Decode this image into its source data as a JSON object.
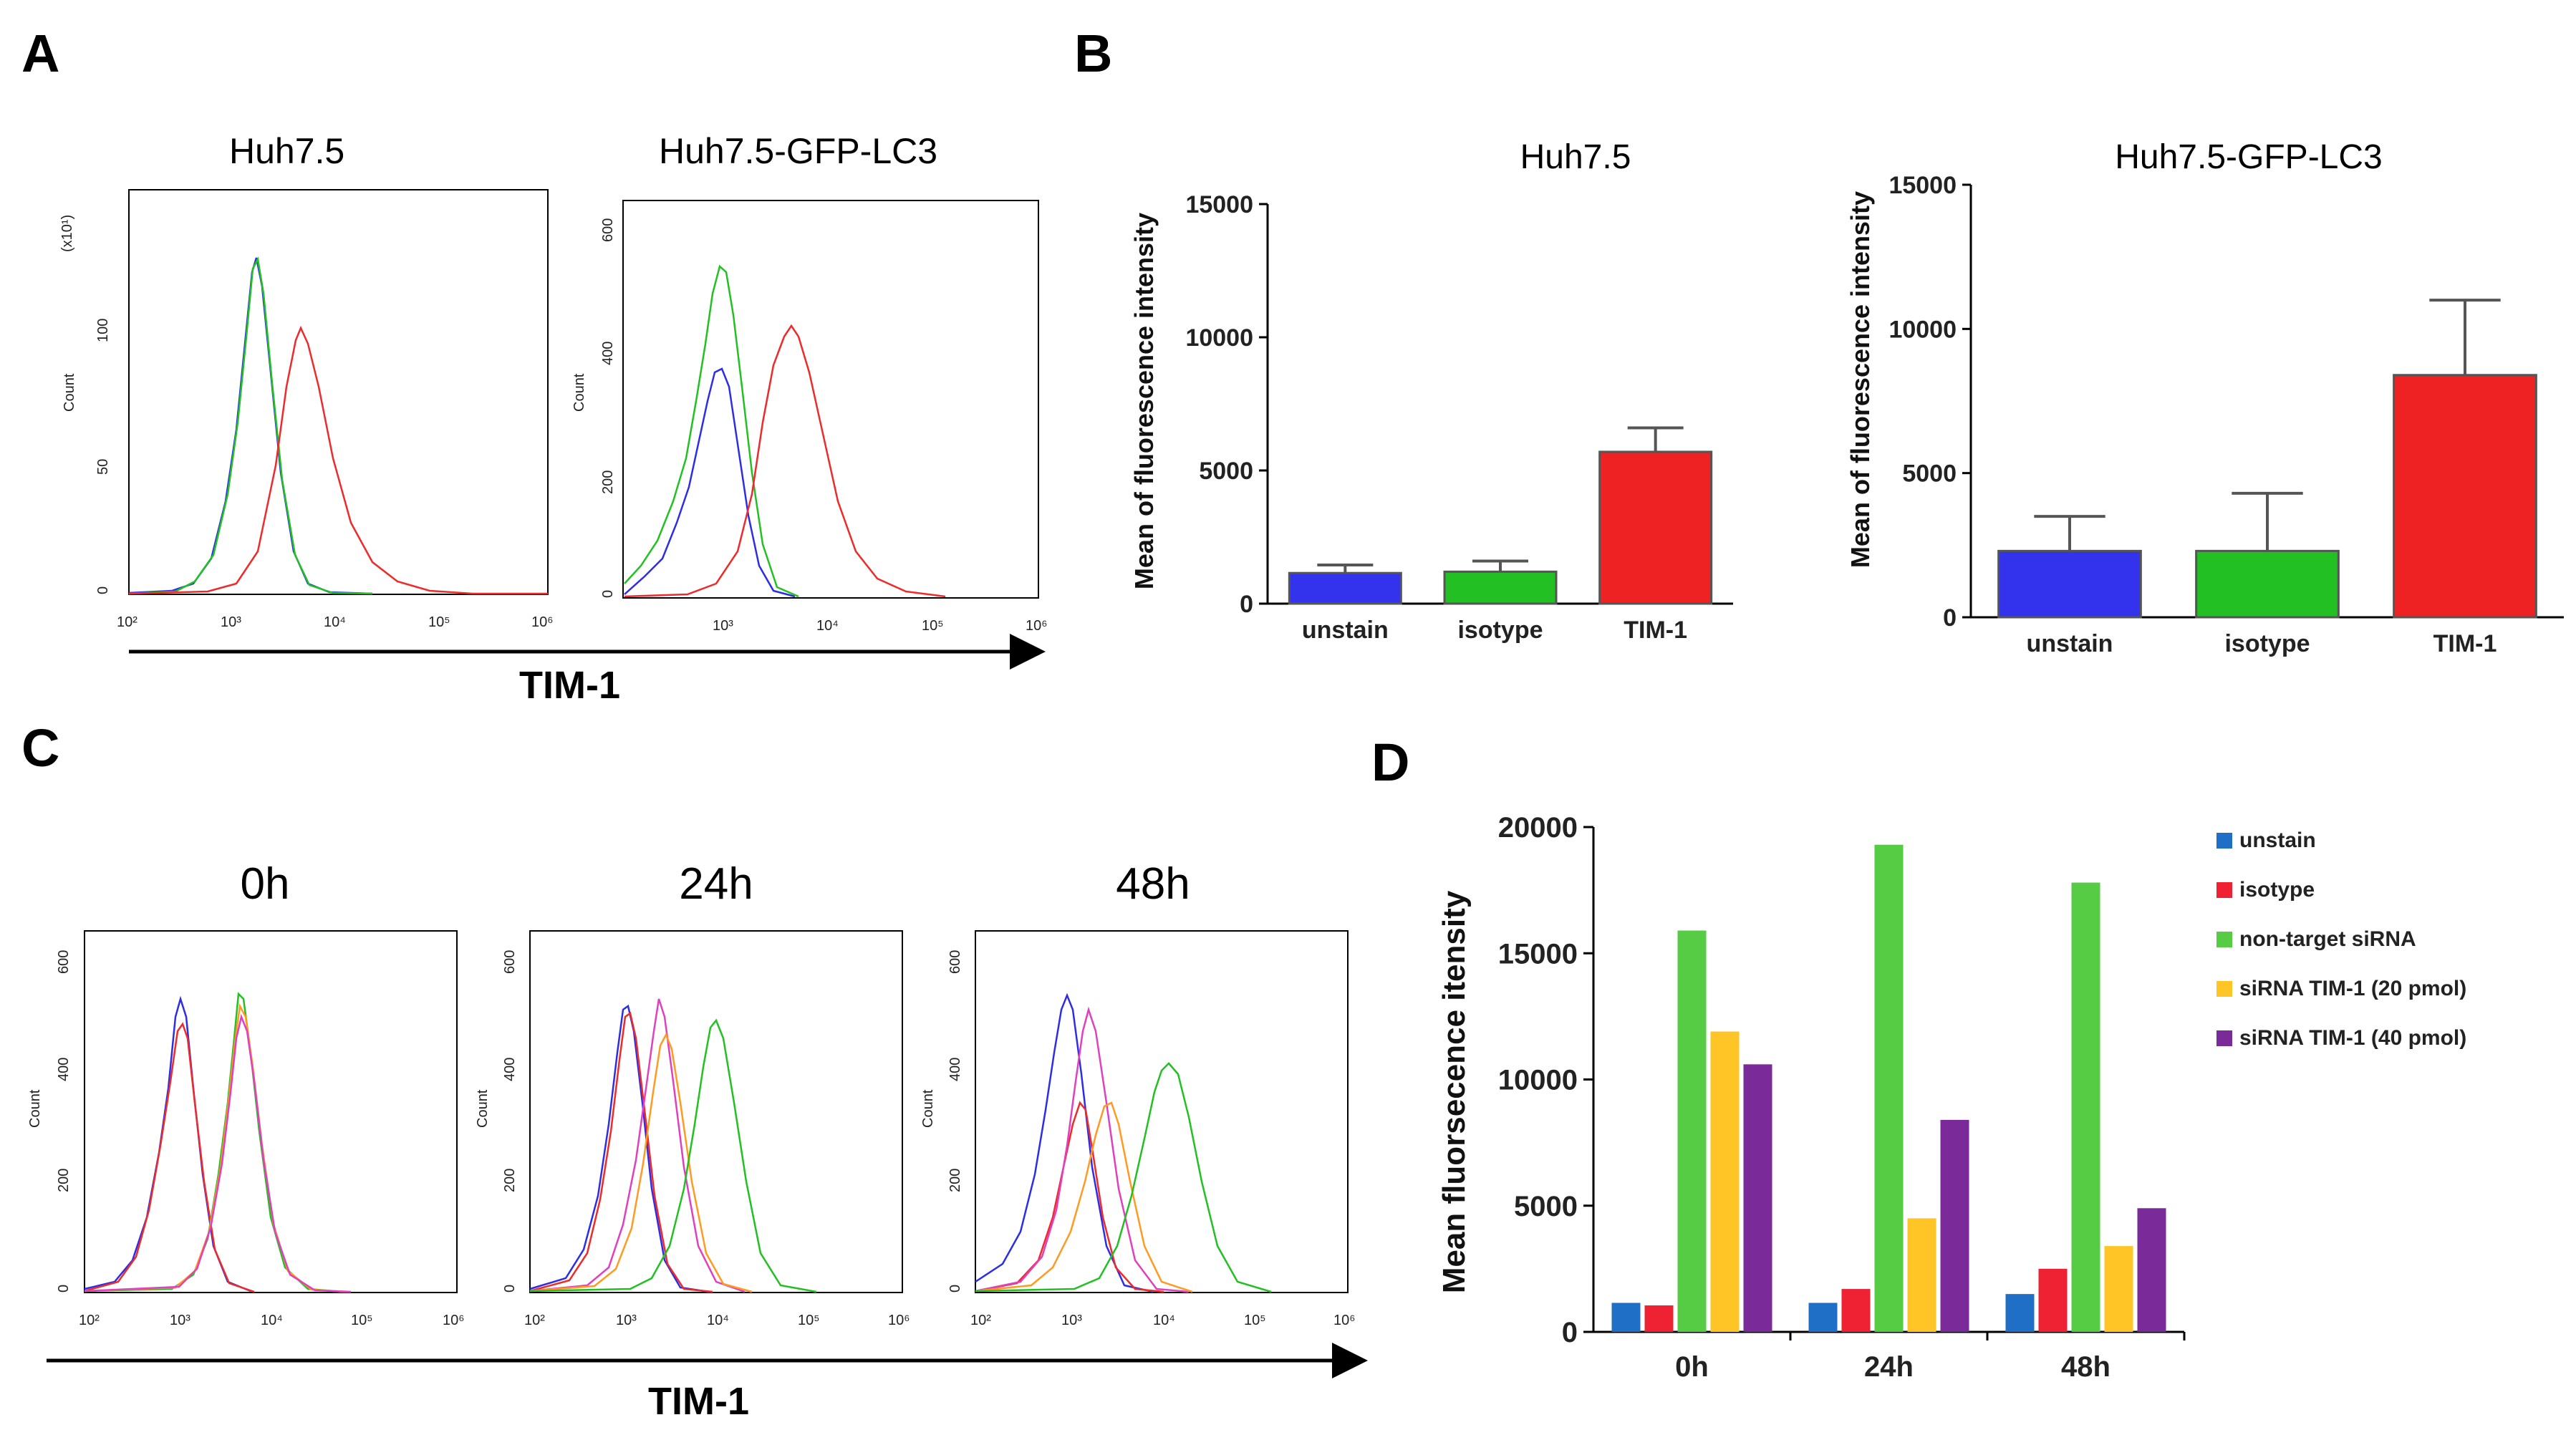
{
  "panels": {
    "A": {
      "letter": "A",
      "axis_label": "TIM-1",
      "plots": [
        {
          "title": "Huh7.5",
          "ylabel": "Count",
          "yscale_note": "(x10¹)",
          "yticks": [
            "0",
            "50",
            "100"
          ],
          "xticks": [
            "10²",
            "10³",
            "10⁴",
            "10⁵",
            "10⁶"
          ]
        },
        {
          "title": "Huh7.5-GFP-LC3",
          "ylabel": "Count",
          "yticks": [
            "0",
            "200",
            "400",
            "600"
          ],
          "xticks": [
            "10³",
            "10⁴",
            "10⁵",
            "10⁶"
          ]
        }
      ]
    },
    "B": {
      "letter": "B"
    },
    "C": {
      "letter": "C",
      "axis_label": "TIM-1",
      "plots": [
        {
          "title": "0h",
          "ylabel": "Count",
          "yticks": [
            "0",
            "200",
            "400",
            "600"
          ],
          "xticks": [
            "10²",
            "10³",
            "10⁴",
            "10⁵",
            "10⁶"
          ]
        },
        {
          "title": "24h",
          "ylabel": "Count",
          "yticks": [
            "0",
            "200",
            "400",
            "600"
          ],
          "xticks": [
            "10²",
            "10³",
            "10⁴",
            "10⁵",
            "10⁶"
          ]
        },
        {
          "title": "48h",
          "ylabel": "Count",
          "yticks": [
            "0",
            "200",
            "400",
            "600"
          ],
          "xticks": [
            "10²",
            "10³",
            "10⁴",
            "10⁵",
            "10⁶"
          ]
        }
      ]
    },
    "D": {
      "letter": "D"
    }
  },
  "colors": {
    "blue": "#2d2de8",
    "green": "#22c022",
    "red": "#ee2a2a",
    "d_unstain": "#1f6fc6",
    "d_isotype": "#ee2233",
    "d_nontarget": "#55cc44",
    "d_si20": "#ffc425",
    "d_si40": "#7b2a99"
  },
  "chart_data": [
    {
      "type": "bar",
      "title": "Huh7.5",
      "ylabel": "Mean of fluorescence intensity",
      "categories": [
        "unstain",
        "isotype",
        "TIM-1"
      ],
      "values": [
        1150,
        1200,
        5700
      ],
      "errors": [
        300,
        400,
        900
      ],
      "ylim": [
        0,
        15000
      ],
      "yticks": [
        0,
        5000,
        10000,
        15000
      ],
      "bar_colors": [
        "#3333ee",
        "#22c022",
        "#ee2222"
      ]
    },
    {
      "type": "bar",
      "title": "Huh7.5-GFP-LC3",
      "ylabel": "Mean of fluorescence intensity",
      "categories": [
        "unstain",
        "isotype",
        "TIM-1"
      ],
      "values": [
        2300,
        2300,
        8400
      ],
      "errors": [
        1200,
        2000,
        2600
      ],
      "ylim": [
        0,
        15000
      ],
      "yticks": [
        0,
        5000,
        10000,
        15000
      ],
      "bar_colors": [
        "#3333ee",
        "#22c022",
        "#ee2222"
      ]
    },
    {
      "type": "bar",
      "ylabel": "Mean fluorsecence itensity",
      "categories": [
        "0h",
        "24h",
        "48h"
      ],
      "ylim": [
        0,
        20000
      ],
      "yticks": [
        0,
        5000,
        10000,
        15000,
        20000
      ],
      "legend_position": "top-right",
      "series": [
        {
          "name": "unstain",
          "values": [
            1150,
            1150,
            1500
          ],
          "color": "#1f6fc6"
        },
        {
          "name": "isotype",
          "values": [
            1050,
            1700,
            2500
          ],
          "color": "#ee2233"
        },
        {
          "name": "non-target siRNA",
          "values": [
            15900,
            19300,
            17800
          ],
          "color": "#55cc44"
        },
        {
          "name": "siRNA TIM-1 (20 pmol)",
          "values": [
            11900,
            4500,
            3400
          ],
          "color": "#ffc425"
        },
        {
          "name": "siRNA TIM-1 (40 pmol)",
          "values": [
            10600,
            8400,
            4900
          ],
          "color": "#7b2a99"
        }
      ]
    }
  ]
}
